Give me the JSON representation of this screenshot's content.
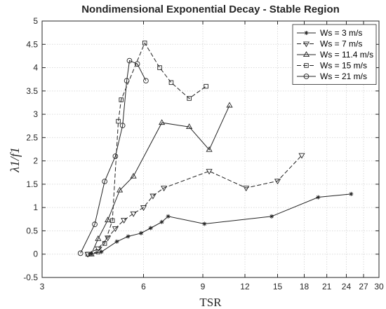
{
  "chart_data": {
    "type": "line",
    "title": "Nondimensional Exponential Decay - Stable Region",
    "xlabel": "TSR",
    "ylabel": "λ1/f1",
    "x_scale": "log",
    "xlim": [
      3,
      30
    ],
    "ylim": [
      -0.5,
      5
    ],
    "x_ticks": [
      3,
      6,
      9,
      12,
      15,
      18,
      21,
      24,
      27,
      30
    ],
    "y_ticks": [
      -0.5,
      0,
      0.5,
      1,
      1.5,
      2,
      2.5,
      3,
      3.5,
      4,
      4.5,
      5
    ],
    "grid": true,
    "legend_position": "top-right",
    "series": [
      {
        "name": "Ws = 3 m/s",
        "marker": "asterisk",
        "line": "solid",
        "x": [
          4.2,
          4.5,
          5.0,
          5.4,
          5.9,
          6.3,
          6.8,
          7.1,
          9.1,
          14.4,
          19.8,
          24.8
        ],
        "y": [
          0.0,
          0.05,
          0.27,
          0.38,
          0.45,
          0.56,
          0.69,
          0.81,
          0.65,
          0.81,
          1.22,
          1.29
        ]
      },
      {
        "name": "Ws = 7 m/s",
        "marker": "triangle-down",
        "line": "dashed",
        "x": [
          4.1,
          4.4,
          4.7,
          4.95,
          5.25,
          5.6,
          6.0,
          6.4,
          6.9,
          9.4,
          12.1,
          15.0,
          17.7
        ],
        "y": [
          0.0,
          0.12,
          0.35,
          0.55,
          0.73,
          0.87,
          1.0,
          1.25,
          1.42,
          1.78,
          1.42,
          1.57,
          2.12
        ]
      },
      {
        "name": "Ws = 11.4 m/s",
        "marker": "triangle-up",
        "line": "solid",
        "x": [
          4.2,
          4.4,
          4.7,
          5.1,
          5.6,
          6.8,
          8.2,
          9.4,
          10.8
        ],
        "y": [
          0.0,
          0.33,
          0.73,
          1.37,
          1.67,
          2.82,
          2.73,
          2.24,
          3.19
        ]
      },
      {
        "name": "Ws = 15 m/s",
        "marker": "square",
        "line": "dashed",
        "x": [
          4.1,
          4.4,
          4.6,
          4.85,
          5.05,
          5.15,
          6.05,
          6.7,
          7.25,
          8.2,
          9.2
        ],
        "y": [
          0.0,
          0.05,
          0.23,
          0.72,
          2.85,
          3.31,
          4.53,
          4.0,
          3.68,
          3.34,
          3.6
        ]
      },
      {
        "name": "Ws = 21 m/s",
        "marker": "circle",
        "line": "solid",
        "x": [
          3.9,
          4.3,
          4.6,
          4.95,
          5.2,
          5.35,
          5.45,
          5.75,
          6.1
        ],
        "y": [
          0.02,
          0.64,
          1.56,
          2.1,
          2.76,
          3.72,
          4.15,
          4.08,
          3.72
        ]
      }
    ]
  }
}
